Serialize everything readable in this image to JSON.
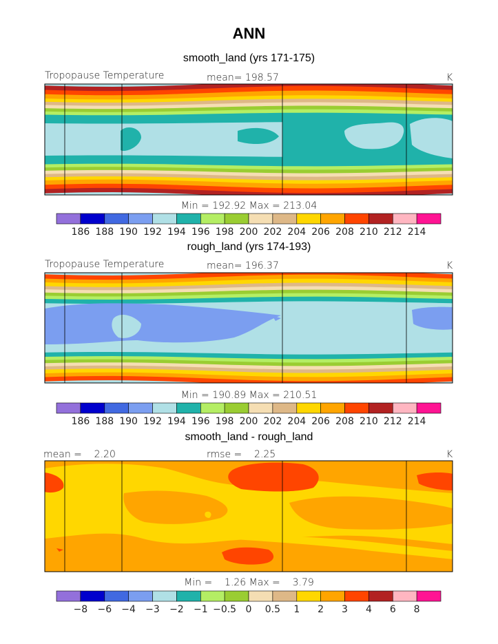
{
  "main_title": "ANN",
  "colors": [
    "#9370db",
    "#0000cd",
    "#4169e1",
    "#7b9ef0",
    "#b0e0e6",
    "#20b2aa",
    "#b4ee64",
    "#9acd32",
    "#f5deb3",
    "#deb887",
    "#ffd700",
    "#ffa500",
    "#ff4500",
    "#b22222",
    "#ffb6c1",
    "#ff1493"
  ],
  "chart_data": [
    {
      "type": "heatmap",
      "title": "smooth_land (yrs 171-175)",
      "variable": "Tropopause Temperature",
      "mean_text": "mean= 198.57",
      "units": "K",
      "minmax_text": "Min = 192.92 Max = 213.04",
      "min": 192.92,
      "max": 213.04,
      "mean": 198.57,
      "colorbar_labels": [
        "186",
        "188",
        "190",
        "192",
        "194",
        "196",
        "198",
        "200",
        "202",
        "204",
        "206",
        "208",
        "210",
        "212",
        "214"
      ]
    },
    {
      "type": "heatmap",
      "title": "rough_land (yrs 174-193)",
      "variable": "Tropopause Temperature",
      "mean_text": "mean= 196.37",
      "units": "K",
      "minmax_text": "Min = 190.89 Max = 210.51",
      "min": 190.89,
      "max": 210.51,
      "mean": 196.37,
      "colorbar_labels": [
        "186",
        "188",
        "190",
        "192",
        "194",
        "196",
        "198",
        "200",
        "202",
        "204",
        "206",
        "208",
        "210",
        "212",
        "214"
      ]
    },
    {
      "type": "heatmap",
      "title": "smooth_land - rough_land",
      "mean_text": "mean =    2.20",
      "rmse_text": "rmse =    2.25",
      "units": "K",
      "minmax_text": "Min =    1.26 Max =    3.79",
      "min": 1.26,
      "max": 3.79,
      "mean": 2.2,
      "rmse": 2.25,
      "colorbar_labels": [
        "−8",
        "−6",
        "−4",
        "−3",
        "−2",
        "−1",
        "−0.5",
        "0",
        "0.5",
        "1",
        "2",
        "3",
        "4",
        "6",
        "8"
      ]
    }
  ]
}
